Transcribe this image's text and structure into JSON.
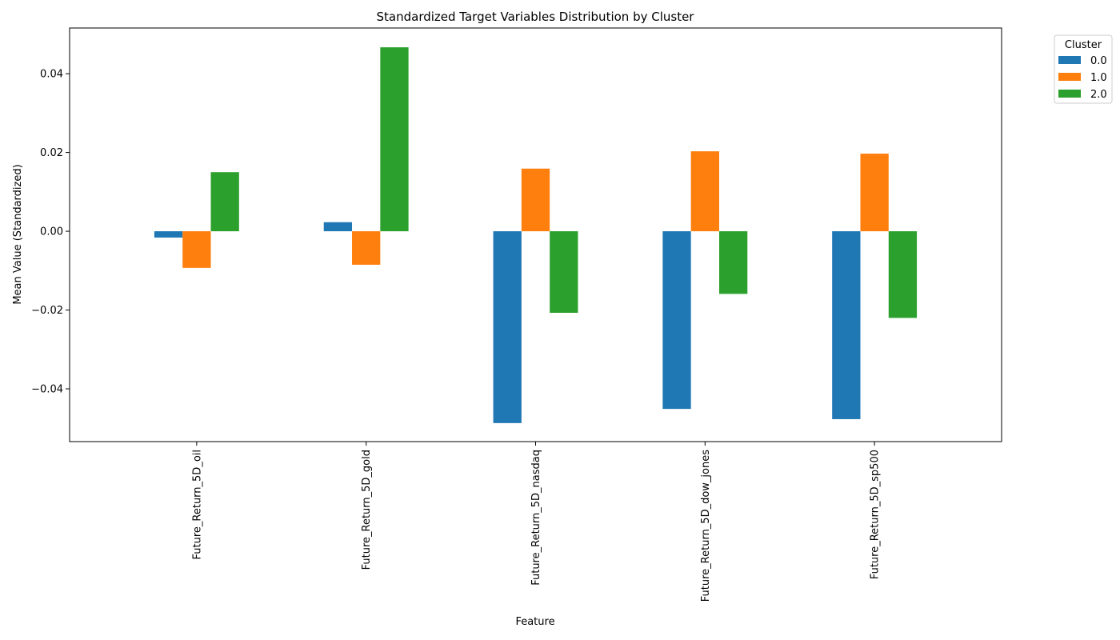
{
  "chart_data": {
    "type": "bar",
    "title": "Standardized Target Variables Distribution by Cluster",
    "xlabel": "Feature",
    "ylabel": "Mean Value (Standardized)",
    "categories": [
      "Future_Return_5D_oil",
      "Future_Return_5D_gold",
      "Future_Return_5D_nasdaq",
      "Future_Return_5D_dow_jones",
      "Future_Return_5D_sp500"
    ],
    "series": [
      {
        "name": "0.0",
        "color": "#1f77b4",
        "values": [
          -0.0016,
          0.0023,
          -0.0487,
          -0.0451,
          -0.0477
        ]
      },
      {
        "name": "1.0",
        "color": "#ff7f0e",
        "values": [
          -0.0093,
          -0.0085,
          0.0159,
          0.0203,
          0.0197
        ]
      },
      {
        "name": "2.0",
        "color": "#2ca02c",
        "values": [
          0.015,
          0.0467,
          -0.0207,
          -0.0159,
          -0.022
        ]
      }
    ],
    "ylim": [
      -0.0534,
      0.0516
    ],
    "yticks": [
      -0.04,
      -0.02,
      0.0,
      0.02,
      0.04
    ],
    "ytick_labels": [
      "−0.04",
      "−0.02",
      "0.00",
      "0.02",
      "0.04"
    ],
    "legend": {
      "title": "Cluster",
      "placement": "outside-top-right"
    },
    "grid": false
  }
}
